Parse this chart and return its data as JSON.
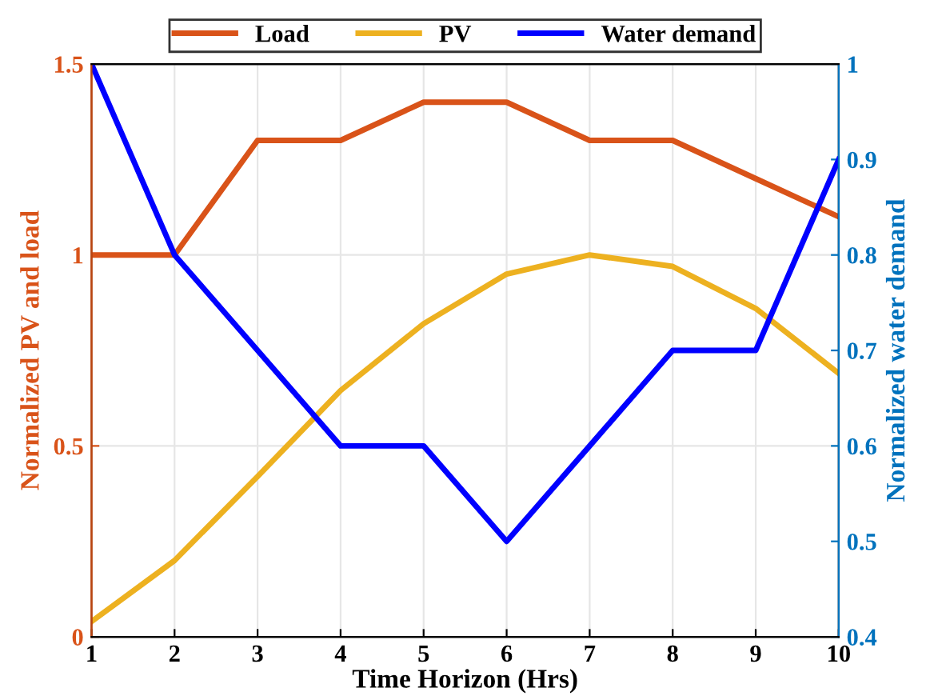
{
  "chart_data": {
    "type": "line",
    "xlabel": "Time Horizon (Hrs)",
    "ylabel": "Normalized PV and load",
    "y2label": "Normalized water demand",
    "x": [
      1,
      2,
      3,
      4,
      5,
      6,
      7,
      8,
      9,
      10
    ],
    "series": [
      {
        "name": "Load",
        "color": "#d95319",
        "values": [
          1,
          1,
          1.3,
          1.3,
          1.4,
          1.4,
          1.3,
          1.3,
          1.2,
          1.1
        ]
      },
      {
        "name": "PV",
        "color": "#edb120",
        "values": [
          0.04,
          0.2,
          0.42,
          0.645,
          0.82,
          0.95,
          1.0,
          0.97,
          0.86,
          0.69
        ]
      },
      {
        "name": "Water demand",
        "color": "#0000ff",
        "axis": "y2",
        "values": [
          1,
          0.8,
          0.7,
          0.6,
          0.6,
          0.5,
          0.6,
          0.7,
          0.7,
          0.9
        ]
      }
    ],
    "xlim": [
      1,
      10
    ],
    "xticks": [
      1,
      2,
      3,
      4,
      5,
      6,
      7,
      8,
      9,
      10
    ],
    "ylim": [
      0,
      1.5
    ],
    "yticks": [
      0,
      0.5,
      1,
      1.5
    ],
    "y2lim": [
      0.4,
      1
    ],
    "y2ticks": [
      0.4,
      0.5,
      0.6,
      0.7,
      0.8,
      0.9,
      1
    ],
    "grid": true,
    "legend": "top",
    "line_style": "solid",
    "marker": "none"
  }
}
